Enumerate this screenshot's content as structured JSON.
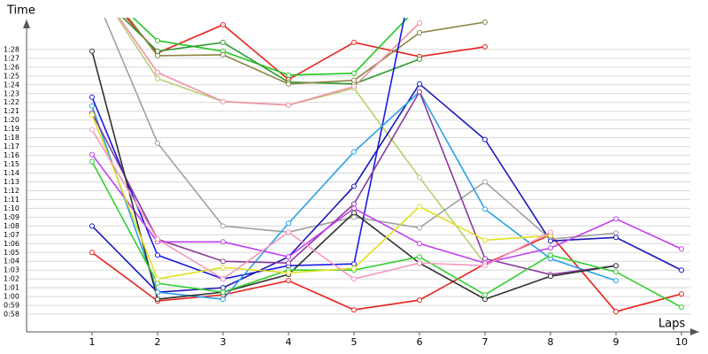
{
  "chart_data": {
    "type": "line",
    "ylabel": "Time",
    "xlabel": "Laps",
    "x": [
      1,
      2,
      3,
      4,
      5,
      6,
      7,
      8,
      9,
      10
    ],
    "xlim": [
      0,
      10.27
    ],
    "xticks": [
      1,
      2,
      3,
      4,
      5,
      6,
      7,
      8,
      9,
      10
    ],
    "ylim": [
      56,
      91.1
    ],
    "yticks": [
      {
        "value": 58,
        "label": "0:58"
      },
      {
        "value": 59,
        "label": "0:59"
      },
      {
        "value": 60,
        "label": "1:00"
      },
      {
        "value": 61,
        "label": "1:01"
      },
      {
        "value": 62,
        "label": "1:02"
      },
      {
        "value": 63,
        "label": "1:03"
      },
      {
        "value": 64,
        "label": "1:04"
      },
      {
        "value": 65,
        "label": "1:05"
      },
      {
        "value": 66,
        "label": "1:06"
      },
      {
        "value": 67,
        "label": "1:07"
      },
      {
        "value": 68,
        "label": "1:08"
      },
      {
        "value": 69,
        "label": "1:09"
      },
      {
        "value": 70,
        "label": "1:10"
      },
      {
        "value": 71,
        "label": "1:11"
      },
      {
        "value": 72,
        "label": "1:12"
      },
      {
        "value": 73,
        "label": "1:13"
      },
      {
        "value": 74,
        "label": "1:14"
      },
      {
        "value": 75,
        "label": "1:15"
      },
      {
        "value": 76,
        "label": "1:16"
      },
      {
        "value": 77,
        "label": "1:17"
      },
      {
        "value": 78,
        "label": "1:18"
      },
      {
        "value": 79,
        "label": "1:19"
      },
      {
        "value": 80,
        "label": "1:20"
      },
      {
        "value": 81,
        "label": "1:21"
      },
      {
        "value": 82,
        "label": "1:22"
      },
      {
        "value": 83,
        "label": "1:23"
      },
      {
        "value": 84,
        "label": "1:24"
      },
      {
        "value": 85,
        "label": "1:25"
      },
      {
        "value": 86,
        "label": "1:26"
      },
      {
        "value": 87,
        "label": "1:27"
      },
      {
        "value": 88,
        "label": "1:28"
      }
    ],
    "grid": true,
    "series": [
      {
        "color": "#e8221c",
        "values": [
          65.0,
          59.5,
          60.2,
          61.8,
          58.5,
          59.6,
          63.7,
          67.0,
          58.3,
          60.3
        ]
      },
      {
        "color": "#e8221c",
        "values": [
          96,
          87.6,
          90.8,
          84.6,
          88.8,
          87.2,
          88.3,
          null,
          null,
          null
        ]
      },
      {
        "color": "#22c822",
        "values": [
          96,
          89.0,
          87.8,
          85.1,
          85.3,
          93,
          null,
          null,
          null,
          null
        ]
      },
      {
        "color": "#2e9a2e",
        "values": [
          95,
          87.8,
          88.8,
          84.3,
          84.1,
          86.9,
          null,
          null,
          null,
          null
        ]
      },
      {
        "color": "#8c8444",
        "values": [
          97,
          87.3,
          87.4,
          84.1,
          84.5,
          89.9,
          91.1,
          null,
          null,
          null
        ]
      },
      {
        "color": "#b8d070",
        "values": [
          96,
          84.7,
          82.1,
          81.7,
          83.6,
          73.5,
          63.7,
          null,
          null,
          null
        ]
      },
      {
        "color": "#f090a8",
        "values": [
          96,
          85.4,
          82.1,
          81.7,
          83.8,
          91,
          null,
          null,
          null,
          null
        ]
      },
      {
        "color": "#a0a0a0",
        "values": [
          95,
          77.4,
          68.0,
          67.3,
          69.0,
          67.8,
          73.0,
          66.5,
          67.2,
          null
        ]
      },
      {
        "color": "#1a1ae0",
        "values": [
          82.6,
          64.7,
          62.0,
          63.5,
          63.7,
          100,
          null,
          null,
          null,
          null
        ]
      },
      {
        "color": "#1818b8",
        "values": [
          68.0,
          60.5,
          61.0,
          64.5,
          72.5,
          84.1,
          77.8,
          66.3,
          66.7,
          63.0
        ]
      },
      {
        "color": "#2aa0e8",
        "values": [
          81.6,
          60.5,
          59.7,
          68.3,
          76.4,
          83.2,
          69.9,
          64.3,
          61.8,
          null
        ]
      },
      {
        "color": "#8a3a9a",
        "values": [
          80.8,
          66.5,
          64.0,
          63.8,
          70.5,
          83.2,
          64.3,
          62.5,
          63.5,
          null
        ]
      },
      {
        "color": "#c040f0",
        "values": [
          76.1,
          66.2,
          66.2,
          64.5,
          70.0,
          66.0,
          63.8,
          65.5,
          68.8,
          65.4
        ]
      },
      {
        "color": "#303030",
        "values": [
          87.8,
          59.7,
          60.5,
          62.5,
          69.5,
          63.8,
          59.7,
          62.3,
          63.5,
          null
        ]
      },
      {
        "color": "#30d030",
        "values": [
          75.3,
          61.5,
          60.5,
          63.0,
          63.0,
          64.5,
          60.2,
          64.7,
          62.8,
          58.8
        ]
      },
      {
        "color": "#e0e020",
        "values": [
          80.6,
          62.0,
          63.3,
          62.7,
          63.2,
          70.2,
          66.4,
          66.9,
          null,
          null
        ]
      },
      {
        "color": "#f498c0",
        "values": [
          78.9,
          66.5,
          62.0,
          67.3,
          62.0,
          63.8,
          63.5,
          67.3,
          null,
          null
        ]
      }
    ]
  }
}
